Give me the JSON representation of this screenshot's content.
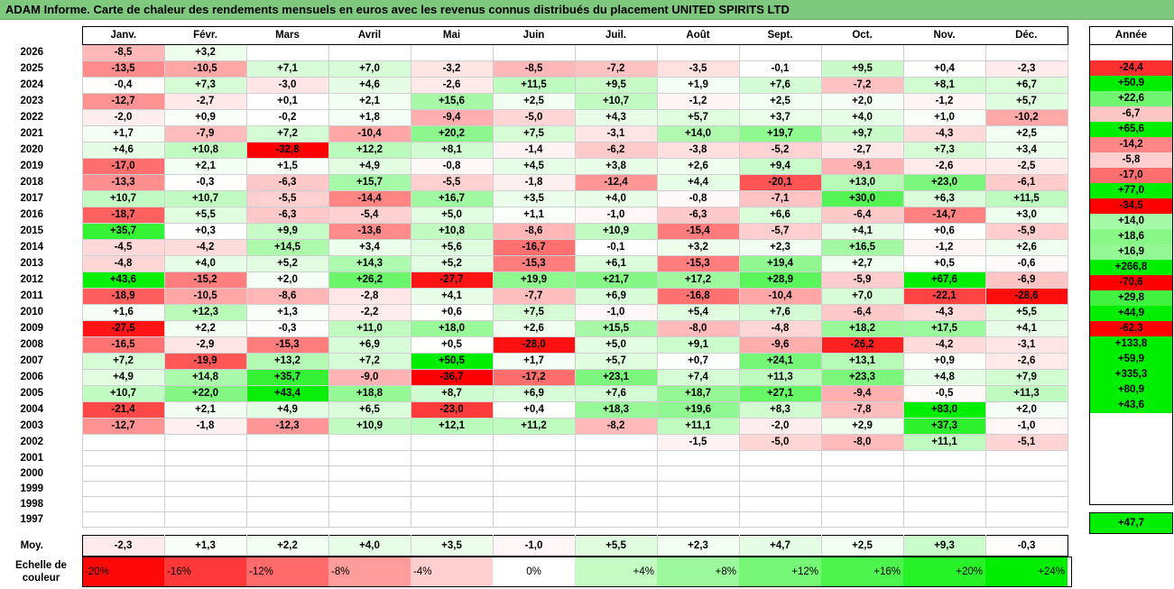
{
  "title": "ADAM Informe. Carte de chaleur des rendements mensuels en euros avec les revenus connus distribués du placement UNITED SPIRITS LTD",
  "colors": {
    "title_bg": "#7fc97f",
    "max_negative": "#ff0000",
    "zero": "#ffffff",
    "max_positive": "#00ee00"
  },
  "chart_data": {
    "type": "heatmap",
    "title": "ADAM Informe. Carte de chaleur des rendements mensuels en euros avec les revenus connus distribués du placement UNITED SPIRITS LTD",
    "months": [
      "Janv.",
      "Févr.",
      "Mars",
      "Avril",
      "Mai",
      "Juin",
      "Juil.",
      "Août",
      "Sept.",
      "Oct.",
      "Nov.",
      "Déc."
    ],
    "year_header": "Année",
    "rows": [
      {
        "year": "2026",
        "values": [
          "-8,5",
          "+3,2",
          "",
          "",
          "",
          "",
          "",
          "",
          "",
          "",
          "",
          ""
        ],
        "annual": ""
      },
      {
        "year": "2025",
        "values": [
          "-13,5",
          "-10,5",
          "+7,1",
          "+7,0",
          "-3,2",
          "-8,5",
          "-7,2",
          "-3,5",
          "-0,1",
          "+9,5",
          "+0,4",
          "-2,3"
        ],
        "annual": "-24,4"
      },
      {
        "year": "2024",
        "values": [
          "-0,4",
          "+7,3",
          "-3,0",
          "+4,6",
          "-2,6",
          "+11,5",
          "+9,5",
          "+1,9",
          "+7,6",
          "-7,2",
          "+8,1",
          "+6,7"
        ],
        "annual": "+50,9"
      },
      {
        "year": "2023",
        "values": [
          "-12,7",
          "-2,7",
          "+0,1",
          "+2,1",
          "+15,6",
          "+2,5",
          "+10,7",
          "-1,2",
          "+2,5",
          "+2,0",
          "-1,2",
          "+5,7"
        ],
        "annual": "+22,6"
      },
      {
        "year": "2022",
        "values": [
          "-2,0",
          "+0,9",
          "-0,2",
          "+1,8",
          "-9,4",
          "-5,0",
          "+4,3",
          "+5,7",
          "+3,7",
          "+4,0",
          "+1,0",
          "-10,2"
        ],
        "annual": "-6,7"
      },
      {
        "year": "2021",
        "values": [
          "+1,7",
          "-7,9",
          "+7,2",
          "-10,4",
          "+20,2",
          "+7,5",
          "-3,1",
          "+14,0",
          "+19,7",
          "+9,7",
          "-4,3",
          "+2,5"
        ],
        "annual": "+65,6"
      },
      {
        "year": "2020",
        "values": [
          "+4,6",
          "+10,8",
          "-32,8",
          "+12,2",
          "+8,1",
          "-1,4",
          "-6,2",
          "-3,8",
          "-5,2",
          "-2,7",
          "+7,3",
          "+3,4"
        ],
        "annual": "-14,2"
      },
      {
        "year": "2019",
        "values": [
          "-17,0",
          "+2,1",
          "+1,5",
          "+4,9",
          "-0,8",
          "+4,5",
          "+3,8",
          "+2,6",
          "+9,4",
          "-9,1",
          "-2,6",
          "-2,5"
        ],
        "annual": "-5,8"
      },
      {
        "year": "2018",
        "values": [
          "-13,3",
          "-0,3",
          "-6,3",
          "+15,7",
          "-5,5",
          "-1,8",
          "-12,4",
          "+4,4",
          "-20,1",
          "+13,0",
          "+23,0",
          "-6,1"
        ],
        "annual": "-17,0"
      },
      {
        "year": "2017",
        "values": [
          "+10,7",
          "+10,7",
          "-5,5",
          "-14,4",
          "+16,7",
          "+3,5",
          "+4,0",
          "-0,8",
          "-7,1",
          "+30,0",
          "+6,3",
          "+11,5"
        ],
        "annual": "+77,0"
      },
      {
        "year": "2016",
        "values": [
          "-18,7",
          "+5,5",
          "-6,3",
          "-5,4",
          "+5,0",
          "+1,1",
          "-1,0",
          "-6,3",
          "+6,6",
          "-6,4",
          "-14,7",
          "+3,0"
        ],
        "annual": "-34,5"
      },
      {
        "year": "2015",
        "values": [
          "+35,7",
          "+0,3",
          "+9,9",
          "-13,6",
          "+10,8",
          "-8,6",
          "+10,9",
          "-15,4",
          "-5,7",
          "+4,1",
          "+0,6",
          "-5,9"
        ],
        "annual": "+14,0"
      },
      {
        "year": "2014",
        "values": [
          "-4,5",
          "-4,2",
          "+14,5",
          "+3,4",
          "+5,6",
          "-16,7",
          "-0,1",
          "+3,2",
          "+2,3",
          "+16,5",
          "-1,2",
          "+2,6"
        ],
        "annual": "+18,6"
      },
      {
        "year": "2013",
        "values": [
          "-4,8",
          "+4,0",
          "+5,2",
          "+14,3",
          "+5,2",
          "-15,3",
          "+6,1",
          "-15,3",
          "+19,4",
          "+2,7",
          "+0,5",
          "-0,6"
        ],
        "annual": "+16,9"
      },
      {
        "year": "2012",
        "values": [
          "+43,6",
          "-15,2",
          "+2,0",
          "+26,2",
          "-27,7",
          "+19,9",
          "+21,7",
          "+17,2",
          "+28,9",
          "-5,9",
          "+67,6",
          "-6,9"
        ],
        "annual": "+266,8"
      },
      {
        "year": "2011",
        "values": [
          "-18,9",
          "-10,5",
          "-8,6",
          "-2,8",
          "+4,1",
          "-7,7",
          "+6,9",
          "-16,8",
          "-10,4",
          "+7,0",
          "-22,1",
          "-28,6"
        ],
        "annual": "-70,6"
      },
      {
        "year": "2010",
        "values": [
          "+1,6",
          "+12,3",
          "+1,3",
          "-2,2",
          "+0,6",
          "+7,5",
          "-1,0",
          "+5,4",
          "+7,6",
          "-6,4",
          "-4,3",
          "+5,5"
        ],
        "annual": "+29,8"
      },
      {
        "year": "2009",
        "values": [
          "-27,5",
          "+2,2",
          "-0,3",
          "+11,0",
          "+18,0",
          "+2,6",
          "+15,5",
          "-8,0",
          "-4,8",
          "+18,2",
          "+17,5",
          "+4,1"
        ],
        "annual": "+44,9"
      },
      {
        "year": "2008",
        "values": [
          "-16,5",
          "-2,9",
          "-15,3",
          "+6,9",
          "+0,5",
          "-28,0",
          "+5,0",
          "+9,1",
          "-9,6",
          "-26,2",
          "-4,2",
          "-3,1"
        ],
        "annual": "-62,3"
      },
      {
        "year": "2007",
        "values": [
          "+7,2",
          "-19,9",
          "+13,2",
          "+7,2",
          "+50,5",
          "+1,7",
          "+5,7",
          "+0,7",
          "+24,1",
          "+13,1",
          "+0,9",
          "-2,6"
        ],
        "annual": "+133,8"
      },
      {
        "year": "2006",
        "values": [
          "+4,9",
          "+14,8",
          "+35,7",
          "-9,0",
          "-36,7",
          "-17,2",
          "+23,1",
          "+7,4",
          "+11,3",
          "+23,3",
          "+4,8",
          "+7,9"
        ],
        "annual": "+59,9"
      },
      {
        "year": "2005",
        "values": [
          "+10,7",
          "+22,0",
          "+43,4",
          "+18,8",
          "+8,7",
          "+6,9",
          "+7,6",
          "+18,7",
          "+27,1",
          "-9,4",
          "-0,5",
          "+11,3"
        ],
        "annual": "+335,3"
      },
      {
        "year": "2004",
        "values": [
          "-21,4",
          "+2,1",
          "+4,9",
          "+6,5",
          "-23,0",
          "+0,4",
          "+18,3",
          "+19,6",
          "+8,3",
          "-7,8",
          "+83,0",
          "+2,0"
        ],
        "annual": "+80,9"
      },
      {
        "year": "2003",
        "values": [
          "-12,7",
          "-1,8",
          "-12,3",
          "+10,9",
          "+12,1",
          "+11,2",
          "-8,2",
          "+11,1",
          "-2,0",
          "+2,9",
          "+37,3",
          "-1,0"
        ],
        "annual": "+43,6"
      },
      {
        "year": "2002",
        "values": [
          "",
          "",
          "",
          "",
          "",
          "",
          "",
          "-1,5",
          "-5,0",
          "-8,0",
          "+11,1",
          "-5,1"
        ],
        "annual": ""
      },
      {
        "year": "2001",
        "values": [
          "",
          "",
          "",
          "",
          "",
          "",
          "",
          "",
          "",
          "",
          "",
          ""
        ],
        "annual": ""
      },
      {
        "year": "2000",
        "values": [
          "",
          "",
          "",
          "",
          "",
          "",
          "",
          "",
          "",
          "",
          "",
          ""
        ],
        "annual": ""
      },
      {
        "year": "1999",
        "values": [
          "",
          "",
          "",
          "",
          "",
          "",
          "",
          "",
          "",
          "",
          "",
          ""
        ],
        "annual": ""
      },
      {
        "year": "1998",
        "values": [
          "",
          "",
          "",
          "",
          "",
          "",
          "",
          "",
          "",
          "",
          "",
          ""
        ],
        "annual": ""
      },
      {
        "year": "1997",
        "values": [
          "",
          "",
          "",
          "",
          "",
          "",
          "",
          "",
          "",
          "",
          "",
          ""
        ],
        "annual": ""
      }
    ],
    "average": {
      "label": "Moy.",
      "values": [
        "-2,3",
        "+1,3",
        "+2,2",
        "+4,0",
        "+3,5",
        "-1,0",
        "+5,5",
        "+2,3",
        "+4,7",
        "+2,5",
        "+9,3",
        "-0,3"
      ],
      "annual": "+47,7"
    },
    "scale": {
      "label": "Echelle de couleur",
      "stops": [
        "-20%",
        "-16%",
        "-12%",
        "-8%",
        "-4%",
        "0%",
        "+4%",
        "+8%",
        "+12%",
        "+16%",
        "+20%",
        "+24%"
      ],
      "stop_values": [
        -20,
        -16,
        -12,
        -8,
        -4,
        0,
        4,
        8,
        12,
        16,
        20,
        24
      ]
    }
  }
}
